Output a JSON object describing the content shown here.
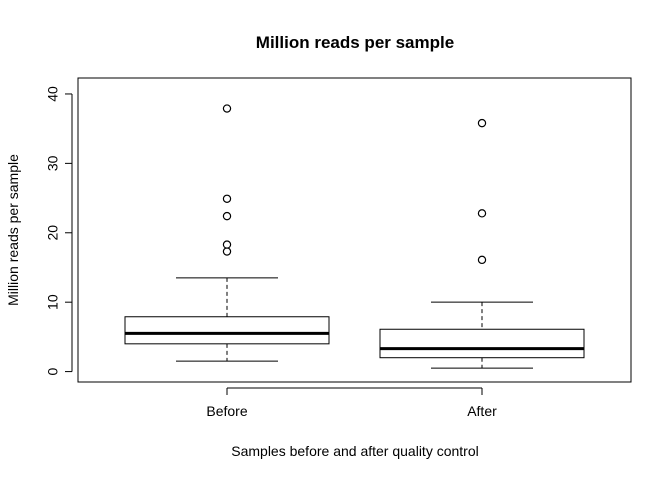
{
  "chart_data": {
    "type": "boxplot",
    "title": "Million reads per sample",
    "xlabel": "Samples before and after quality control",
    "ylabel": "Million reads per sample",
    "ylim": [
      -1.5,
      42.3
    ],
    "yticks": [
      0,
      10,
      20,
      30,
      40
    ],
    "categories": [
      "Before",
      "After"
    ],
    "boxes": [
      {
        "category": "Before",
        "whisker_low": 1.5,
        "q1": 4.0,
        "median": 5.5,
        "q3": 7.9,
        "whisker_high": 13.5,
        "outliers": [
          17.3,
          18.3,
          22.4,
          24.9,
          37.9
        ]
      },
      {
        "category": "After",
        "whisker_low": 0.5,
        "q1": 2.0,
        "median": 3.3,
        "q3": 6.1,
        "whisker_high": 10.0,
        "outliers": [
          16.1,
          22.8,
          35.8
        ]
      }
    ],
    "grid": false,
    "legend": "none"
  }
}
